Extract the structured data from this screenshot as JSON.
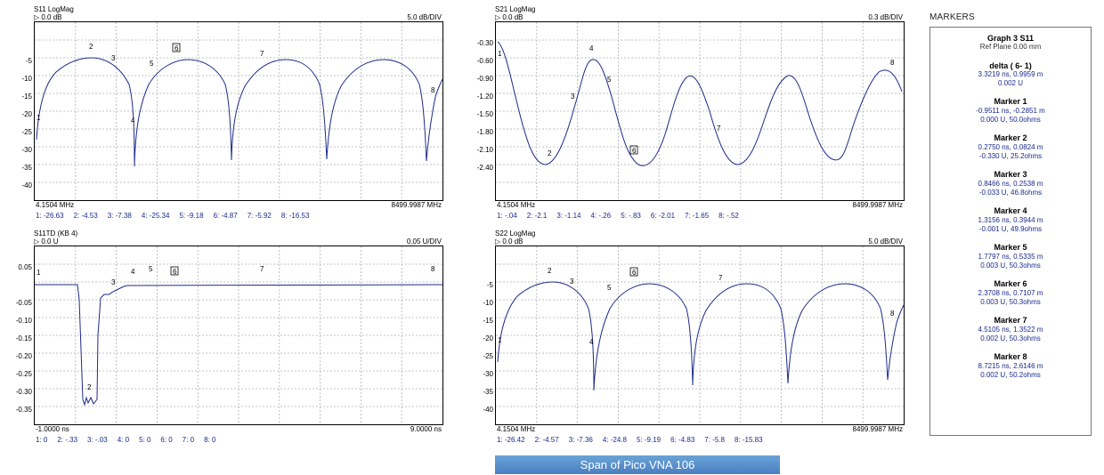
{
  "colors": {
    "trace": "#1f2a8a",
    "readout": "#1a2a8c",
    "grid": "#9a9a9a",
    "caption_bg": "#4a7fc0"
  },
  "graphs": [
    {
      "id": "s11",
      "title": "S11 LogMag",
      "ref": "▷ 0.0 dB",
      "scale": "5.0 dB/DIV",
      "yticks": [
        "-5",
        "-10",
        "-15",
        "-20",
        "-25",
        "-30",
        "-35",
        "-40"
      ],
      "start": "4.1504 MHz",
      "stop": "8499.9987 MHz",
      "readouts": [
        "1: -26.63",
        "2: -4.53",
        "3: -7.38",
        "4: -25.34",
        "5: -9.18",
        "6: -4.87",
        "7: -5.92",
        "8: -16.53"
      ]
    },
    {
      "id": "s21",
      "title": "S21 LogMag",
      "ref": "▷ 0.0 dB",
      "scale": "0.3 dB/DIV",
      "yticks": [
        "-0.30",
        "-0.60",
        "-0.90",
        "-1.20",
        "-1.50",
        "-1.80",
        "-2.10",
        "-2.40"
      ],
      "start": "4.1504 MHz",
      "stop": "8499.9987 MHz",
      "readouts": [
        "1: -.04",
        "2: -2.1",
        "3: -1.14",
        "4: -.26",
        "5: -.83",
        "6: -2.01",
        "7: -1.65",
        "8: -.52"
      ]
    },
    {
      "id": "s11td",
      "title": "S11TD (KB 4)",
      "ref": "▷ 0.0 U",
      "scale": "0.05 U/DIV",
      "yticks": [
        "0.05",
        "",
        "-0.05",
        "-0.10",
        "-0.15",
        "-0.20",
        "-0.25",
        "-0.30",
        "-0.35"
      ],
      "start": "-1.0000 ns",
      "stop": "9.0000 ns",
      "readouts": [
        "1: 0",
        "2: -.33",
        "3: -.03",
        "4: 0",
        "5: 0",
        "6: 0",
        "7: 0",
        "8: 0"
      ]
    },
    {
      "id": "s22",
      "title": "S22 LogMag",
      "ref": "▷ 0.0 dB",
      "scale": "5.0 dB/DIV",
      "yticks": [
        "-5",
        "-10",
        "-15",
        "-20",
        "-25",
        "-30",
        "-35",
        "-40"
      ],
      "start": "4.1504 MHz",
      "stop": "8499.9987 MHz",
      "readouts": [
        "1: -26.42",
        "2: -4.57",
        "3: -7.36",
        "4: -24.8",
        "5: -9.19",
        "6: -4.83",
        "7: -5.8",
        "8: -15.83"
      ]
    }
  ],
  "markers_panel": {
    "title": "MARKERS",
    "graph": "Graph 3 S11",
    "ref_plane": "Ref Plane 0.00 mm",
    "delta": {
      "name": "delta ( 6- 1)",
      "line1": "3.3219 ns, 0.9959 m",
      "line2": "0.002 U"
    },
    "markers": [
      {
        "name": "Marker 1",
        "line1": "-0.9511 ns, -0.2851 m",
        "line2": "0.000 U,  50.0ohms"
      },
      {
        "name": "Marker 2",
        "line1": "0.2750 ns, 0.0824 m",
        "line2": "-0.330 U,  25.2ohms"
      },
      {
        "name": "Marker 3",
        "line1": "0.8466 ns, 0.2538 m",
        "line2": "-0.033 U,  46.8ohms"
      },
      {
        "name": "Marker 4",
        "line1": "1.3156 ns, 0.3944 m",
        "line2": "-0.001 U,  49.9ohms"
      },
      {
        "name": "Marker 5",
        "line1": "1.7797 ns, 0.5335 m",
        "line2": "0.003 U,  50.3ohms"
      },
      {
        "name": "Marker 6",
        "line1": "2.3708 ns, 0.7107 m",
        "line2": "0.003 U,  50.3ohms"
      },
      {
        "name": "Marker 7",
        "line1": "4.5105 ns, 1.3522 m",
        "line2": "0.002 U,  50.3ohms"
      },
      {
        "name": "Marker 8",
        "line1": "8.7215 ns, 2.6146 m",
        "line2": "0.002 U,  50.2ohms"
      }
    ]
  },
  "caption": "Span of Pico VNA 106"
}
